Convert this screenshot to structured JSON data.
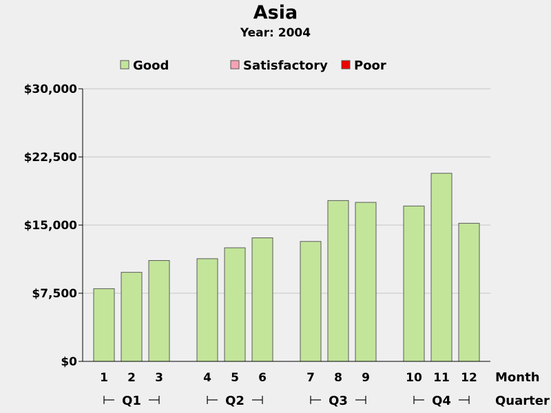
{
  "chart_data": {
    "type": "bar",
    "title": "Asia",
    "subtitle": "Year: 2004",
    "legend": {
      "placement": "top",
      "entries": [
        {
          "label": "Good",
          "color": "#c3e59a"
        },
        {
          "label": "Satisfactory",
          "color": "#f5a3b4"
        },
        {
          "label": "Poor",
          "color": "#ee0000"
        }
      ]
    },
    "ylim": [
      0,
      30000
    ],
    "yticks": [
      0,
      7500,
      15000,
      22500,
      30000
    ],
    "ytick_labels": [
      "$0",
      "$7,500",
      "$15,000",
      "$22,500",
      "$30,000"
    ],
    "grid": true,
    "x_axis_label": "Month",
    "group_axis_label": "Quarter",
    "groups": [
      {
        "label": "Q1",
        "months": [
          "1",
          "2",
          "3"
        ],
        "values": [
          8000,
          9800,
          11100
        ]
      },
      {
        "label": "Q2",
        "months": [
          "4",
          "5",
          "6"
        ],
        "values": [
          11300,
          12500,
          13600
        ]
      },
      {
        "label": "Q3",
        "months": [
          "7",
          "8",
          "9"
        ],
        "values": [
          13200,
          17700,
          17500
        ]
      },
      {
        "label": "Q4",
        "months": [
          "10",
          "11",
          "12"
        ],
        "values": [
          17100,
          20700,
          15200
        ]
      }
    ],
    "bar_color": "#c3e59a"
  }
}
